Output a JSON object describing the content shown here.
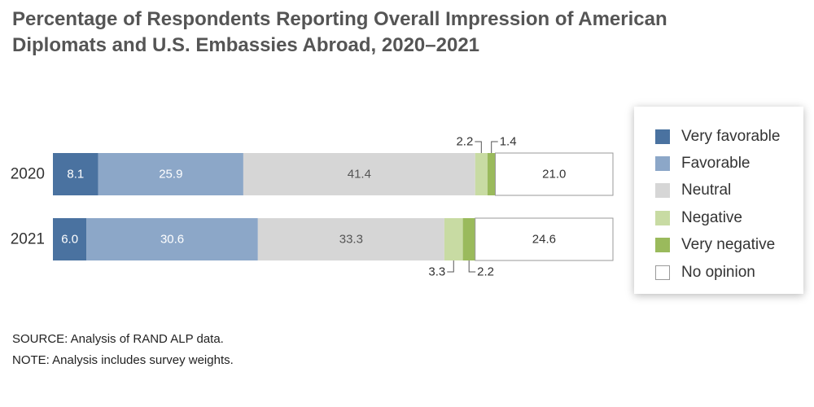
{
  "chart_data": {
    "type": "bar",
    "orientation": "horizontal",
    "stacked": true,
    "title": [
      "Percentage of Respondents Reporting Overall Impression of American",
      "Diplomats and U.S. Embassies Abroad, 2020–2021"
    ],
    "categories": [
      "2020",
      "2021"
    ],
    "xlim": [
      0,
      100
    ],
    "grid": false,
    "legend_position": "right",
    "series": [
      {
        "name": "Very favorable",
        "color": "#4a72a0",
        "values": [
          8.1,
          6.0
        ],
        "label_position": "inside",
        "label_color": "#ffffff"
      },
      {
        "name": "Favorable",
        "color": "#8ca7c8",
        "values": [
          25.9,
          30.6
        ],
        "label_position": "inside",
        "label_color": "#ffffff"
      },
      {
        "name": "Neutral",
        "color": "#d6d6d6",
        "values": [
          41.4,
          33.3
        ],
        "label_position": "inside",
        "label_color": "#555555"
      },
      {
        "name": "Negative",
        "color": "#c8dba3",
        "values": [
          2.2,
          3.3
        ],
        "label_position": "callout-left",
        "label_color": "#333333"
      },
      {
        "name": "Very negative",
        "color": "#9aba5c",
        "values": [
          1.4,
          2.2
        ],
        "label_position": "callout-right",
        "label_color": "#333333"
      },
      {
        "name": "No opinion",
        "color": "#ffffff",
        "values": [
          21.0,
          24.6
        ],
        "label_position": "inside",
        "label_color": "#333333"
      }
    ]
  },
  "footer": {
    "source": "SOURCE: Analysis of RAND ALP data.",
    "note": "NOTE: Analysis includes survey weights."
  }
}
